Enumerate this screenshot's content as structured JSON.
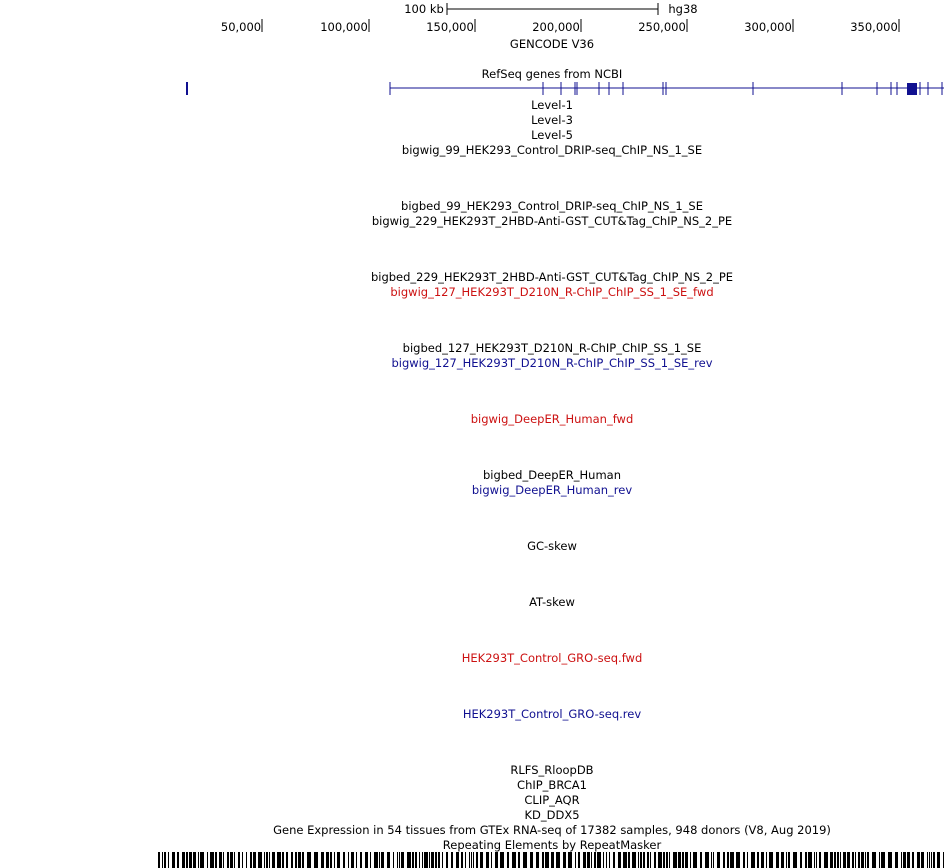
{
  "scale_bar": {
    "label": "100 kb",
    "assembly": "hg38"
  },
  "ruler": {
    "ticks": [
      {
        "label": "50,000"
      },
      {
        "label": "100,000"
      },
      {
        "label": "150,000"
      },
      {
        "label": "200,000"
      },
      {
        "label": "250,000"
      },
      {
        "label": "300,000"
      },
      {
        "label": "350,000"
      }
    ]
  },
  "colors": {
    "gene": "#101090",
    "fwd": "#cc1111",
    "rev": "#101090",
    "text": "#000000"
  },
  "tracks": [
    {
      "label": "GENCODE V36",
      "color": "black"
    },
    {
      "label": "RefSeq genes from NCBI",
      "color": "black"
    },
    {
      "label": "Level-1",
      "color": "black"
    },
    {
      "label": "Level-3",
      "color": "black"
    },
    {
      "label": "Level-5",
      "color": "black"
    },
    {
      "label": "bigwig_99_HEK293_Control_DRIP-seq_ChIP_NS_1_SE",
      "color": "black"
    },
    {
      "label": "bigbed_99_HEK293_Control_DRIP-seq_ChIP_NS_1_SE",
      "color": "black"
    },
    {
      "label": "bigwig_229_HEK293T_2HBD-Anti-GST_CUT&Tag_ChIP_NS_2_PE",
      "color": "black"
    },
    {
      "label": "bigbed_229_HEK293T_2HBD-Anti-GST_CUT&Tag_ChIP_NS_2_PE",
      "color": "black"
    },
    {
      "label": "bigwig_127_HEK293T_D210N_R-ChIP_ChIP_SS_1_SE_fwd",
      "color": "red"
    },
    {
      "label": "bigbed_127_HEK293T_D210N_R-ChIP_ChIP_SS_1_SE",
      "color": "black"
    },
    {
      "label": "bigwig_127_HEK293T_D210N_R-ChIP_ChIP_SS_1_SE_rev",
      "color": "blue"
    },
    {
      "label": "bigwig_DeepER_Human_fwd",
      "color": "red"
    },
    {
      "label": "bigbed_DeepER_Human",
      "color": "black"
    },
    {
      "label": "bigwig_DeepER_Human_rev",
      "color": "blue"
    },
    {
      "label": "GC-skew",
      "color": "black"
    },
    {
      "label": "AT-skew",
      "color": "black"
    },
    {
      "label": "HEK293T_Control_GRO-seq.fwd",
      "color": "red"
    },
    {
      "label": "HEK293T_Control_GRO-seq.rev",
      "color": "blue"
    },
    {
      "label": "RLFS_RloopDB",
      "color": "black"
    },
    {
      "label": "ChIP_BRCA1",
      "color": "black"
    },
    {
      "label": "CLIP_AQR",
      "color": "black"
    },
    {
      "label": "KD_DDX5",
      "color": "black"
    },
    {
      "label": "Gene Expression in 54 tissues from GTEx RNA-seq of 17382 samples, 948 donors (V8, Aug 2019)",
      "color": "black"
    },
    {
      "label": "Repeating Elements by RepeatMasker",
      "color": "black"
    }
  ]
}
